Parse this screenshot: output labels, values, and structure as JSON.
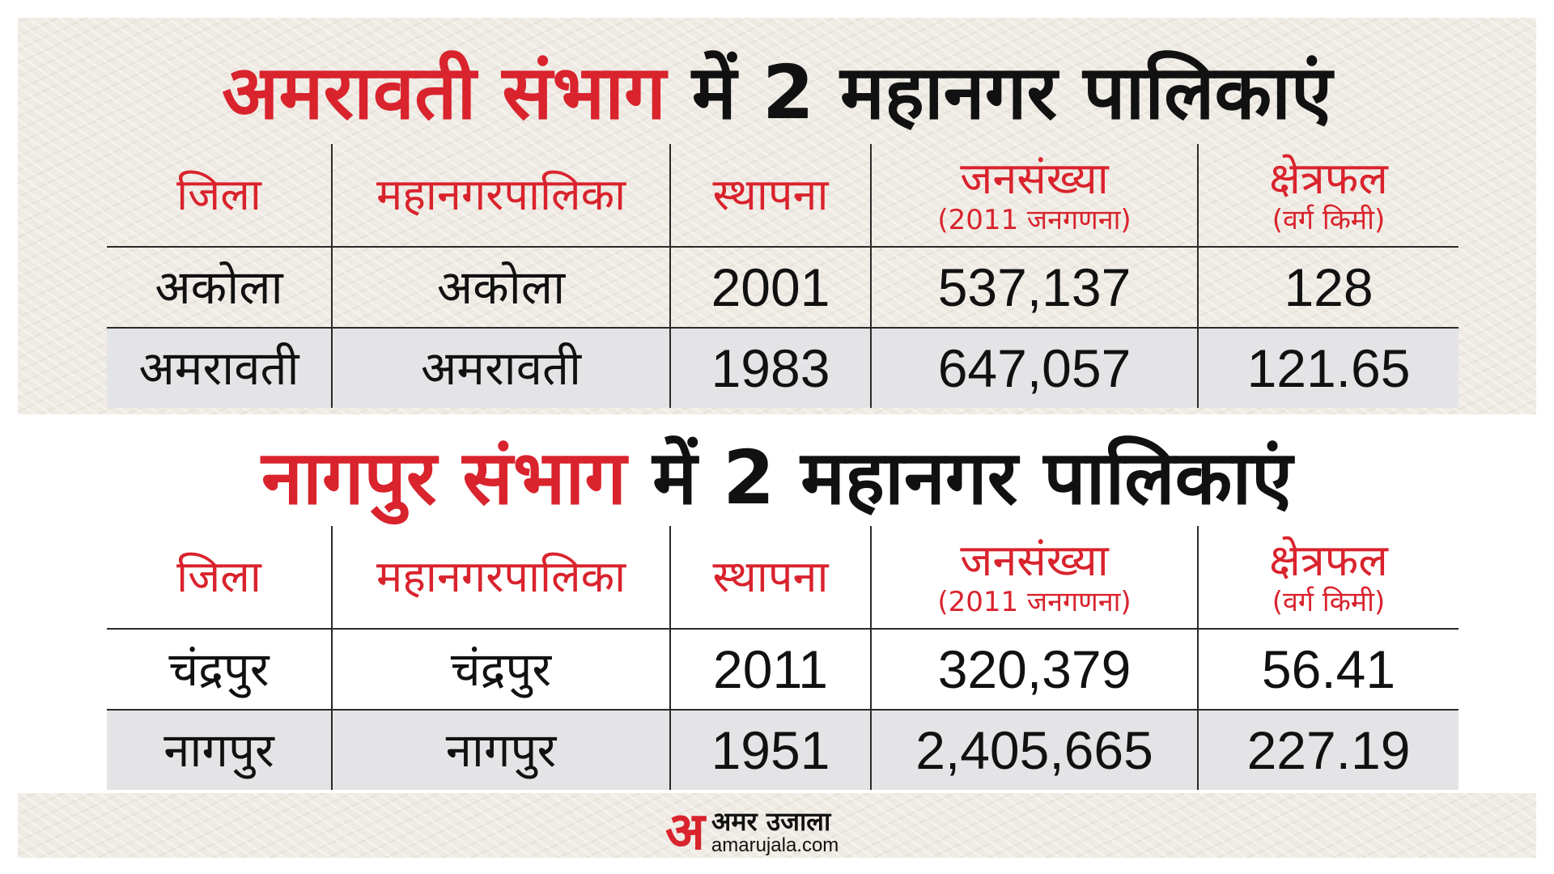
{
  "colors": {
    "accent_red": "#d9232d",
    "text": "#111111",
    "row_shade": "#e4e4e7",
    "panel_bg": "#efebe4"
  },
  "columns": [
    {
      "title": "जिला",
      "sub": ""
    },
    {
      "title": "महानगरपालिका",
      "sub": ""
    },
    {
      "title": "स्थापना",
      "sub": ""
    },
    {
      "title": "जनसंख्या",
      "sub": "(2011 जनगणना)"
    },
    {
      "title": "क्षेत्रफल",
      "sub": "(वर्ग किमी)"
    }
  ],
  "section1": {
    "title_red": "अमरावती संभाग",
    "title_black": "में 2 महानगर पालिकाएं",
    "rows": [
      [
        "अकोला",
        "अकोला",
        "2001",
        "537,137",
        "128"
      ],
      [
        "अमरावती",
        "अमरावती",
        "1983",
        "647,057",
        "121.65"
      ]
    ]
  },
  "section2": {
    "title_red": "नागपुर संभाग",
    "title_black": "में 2 महानगर पालिकाएं",
    "rows": [
      [
        "चंद्रपुर",
        "चंद्रपुर",
        "2011",
        "320,379",
        "56.41"
      ],
      [
        "नागपुर",
        "नागपुर",
        "1951",
        "2,405,665",
        "227.19"
      ]
    ]
  },
  "logo": {
    "mark": "अ",
    "name": "अमर उजाला",
    "url": "amarujala.com"
  }
}
